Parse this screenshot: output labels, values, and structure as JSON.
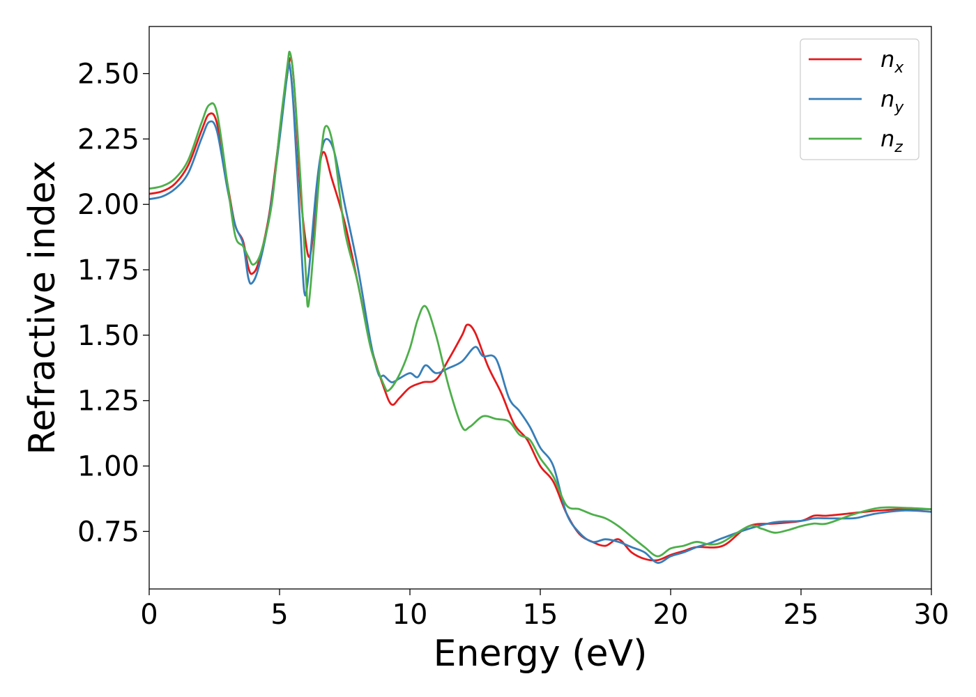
{
  "chart_data": {
    "type": "line",
    "xlabel": "Energy (eV)",
    "ylabel": "Refractive index",
    "xlim": [
      0,
      30
    ],
    "ylim": [
      0.53,
      2.68
    ],
    "xticks": [
      0,
      5,
      10,
      15,
      20,
      25,
      30
    ],
    "xtick_labels": [
      "0",
      "5",
      "10",
      "15",
      "20",
      "25",
      "30"
    ],
    "yticks": [
      0.75,
      1.0,
      1.25,
      1.5,
      1.75,
      2.0,
      2.25,
      2.5
    ],
    "ytick_labels": [
      "0.75",
      "1.00",
      "1.25",
      "1.50",
      "1.75",
      "2.00",
      "2.25",
      "2.50"
    ],
    "grid": false,
    "legend_position": "top-right",
    "series": [
      {
        "name": "n_x",
        "label_base": "n",
        "label_sub": "x",
        "color": "#e41a1c",
        "points": [
          [
            0,
            2.04
          ],
          [
            0.5,
            2.05
          ],
          [
            1,
            2.08
          ],
          [
            1.5,
            2.15
          ],
          [
            2,
            2.28
          ],
          [
            2.3,
            2.345
          ],
          [
            2.6,
            2.31
          ],
          [
            3,
            2.08
          ],
          [
            3.3,
            1.92
          ],
          [
            3.6,
            1.86
          ],
          [
            3.8,
            1.76
          ],
          [
            3.95,
            1.735
          ],
          [
            4.2,
            1.78
          ],
          [
            4.6,
            1.96
          ],
          [
            5,
            2.27
          ],
          [
            5.3,
            2.5
          ],
          [
            5.45,
            2.555
          ],
          [
            5.6,
            2.4
          ],
          [
            5.8,
            2.05
          ],
          [
            6,
            1.86
          ],
          [
            6.15,
            1.8
          ],
          [
            6.3,
            1.9
          ],
          [
            6.5,
            2.12
          ],
          [
            6.7,
            2.2
          ],
          [
            7,
            2.1
          ],
          [
            7.5,
            1.93
          ],
          [
            8,
            1.7
          ],
          [
            8.5,
            1.46
          ],
          [
            9,
            1.3
          ],
          [
            9.3,
            1.235
          ],
          [
            9.6,
            1.26
          ],
          [
            10,
            1.3
          ],
          [
            10.5,
            1.32
          ],
          [
            11,
            1.33
          ],
          [
            11.5,
            1.41
          ],
          [
            12,
            1.5
          ],
          [
            12.2,
            1.54
          ],
          [
            12.5,
            1.51
          ],
          [
            13,
            1.38
          ],
          [
            13.5,
            1.28
          ],
          [
            14,
            1.16
          ],
          [
            14.5,
            1.1
          ],
          [
            15,
            1.0
          ],
          [
            15.5,
            0.94
          ],
          [
            16,
            0.82
          ],
          [
            16.5,
            0.74
          ],
          [
            17,
            0.71
          ],
          [
            17.5,
            0.695
          ],
          [
            18,
            0.72
          ],
          [
            18.5,
            0.67
          ],
          [
            19,
            0.645
          ],
          [
            19.5,
            0.64
          ],
          [
            20,
            0.66
          ],
          [
            20.5,
            0.675
          ],
          [
            21,
            0.69
          ],
          [
            22,
            0.695
          ],
          [
            23,
            0.77
          ],
          [
            24,
            0.78
          ],
          [
            25,
            0.79
          ],
          [
            25.5,
            0.81
          ],
          [
            26,
            0.81
          ],
          [
            27,
            0.82
          ],
          [
            28,
            0.83
          ],
          [
            29,
            0.835
          ],
          [
            30,
            0.835
          ]
        ]
      },
      {
        "name": "n_y",
        "label_base": "n",
        "label_sub": "y",
        "color": "#377eb8",
        "points": [
          [
            0,
            2.02
          ],
          [
            0.5,
            2.03
          ],
          [
            1,
            2.06
          ],
          [
            1.5,
            2.12
          ],
          [
            2,
            2.25
          ],
          [
            2.3,
            2.315
          ],
          [
            2.6,
            2.28
          ],
          [
            3,
            2.06
          ],
          [
            3.3,
            1.92
          ],
          [
            3.6,
            1.85
          ],
          [
            3.8,
            1.72
          ],
          [
            3.95,
            1.7
          ],
          [
            4.2,
            1.76
          ],
          [
            4.6,
            1.95
          ],
          [
            5,
            2.25
          ],
          [
            5.3,
            2.5
          ],
          [
            5.4,
            2.525
          ],
          [
            5.55,
            2.35
          ],
          [
            5.8,
            1.9
          ],
          [
            5.95,
            1.665
          ],
          [
            6.1,
            1.72
          ],
          [
            6.4,
            2.05
          ],
          [
            6.6,
            2.2
          ],
          [
            6.8,
            2.25
          ],
          [
            7.1,
            2.2
          ],
          [
            7.5,
            2.0
          ],
          [
            8,
            1.76
          ],
          [
            8.5,
            1.47
          ],
          [
            8.8,
            1.35
          ],
          [
            9,
            1.345
          ],
          [
            9.3,
            1.32
          ],
          [
            9.6,
            1.335
          ],
          [
            10,
            1.355
          ],
          [
            10.3,
            1.34
          ],
          [
            10.6,
            1.385
          ],
          [
            11,
            1.355
          ],
          [
            11.5,
            1.375
          ],
          [
            12,
            1.4
          ],
          [
            12.5,
            1.455
          ],
          [
            12.8,
            1.42
          ],
          [
            13.3,
            1.41
          ],
          [
            13.8,
            1.26
          ],
          [
            14.2,
            1.21
          ],
          [
            14.6,
            1.15
          ],
          [
            15,
            1.07
          ],
          [
            15.5,
            1.0
          ],
          [
            16,
            0.82
          ],
          [
            16.5,
            0.745
          ],
          [
            17,
            0.71
          ],
          [
            17.5,
            0.72
          ],
          [
            18,
            0.71
          ],
          [
            18.5,
            0.69
          ],
          [
            19,
            0.67
          ],
          [
            19.5,
            0.63
          ],
          [
            20,
            0.655
          ],
          [
            20.5,
            0.67
          ],
          [
            21,
            0.69
          ],
          [
            21.5,
            0.705
          ],
          [
            22,
            0.725
          ],
          [
            23,
            0.76
          ],
          [
            24,
            0.785
          ],
          [
            25,
            0.79
          ],
          [
            25.5,
            0.8
          ],
          [
            26,
            0.8
          ],
          [
            27,
            0.8
          ],
          [
            27.5,
            0.81
          ],
          [
            28,
            0.82
          ],
          [
            29,
            0.83
          ],
          [
            30,
            0.825
          ]
        ]
      },
      {
        "name": "n_z",
        "label_base": "n",
        "label_sub": "z",
        "color": "#4daf4a",
        "points": [
          [
            0,
            2.06
          ],
          [
            0.5,
            2.07
          ],
          [
            1,
            2.1
          ],
          [
            1.5,
            2.17
          ],
          [
            2,
            2.31
          ],
          [
            2.3,
            2.38
          ],
          [
            2.6,
            2.35
          ],
          [
            3,
            2.08
          ],
          [
            3.3,
            1.88
          ],
          [
            3.6,
            1.84
          ],
          [
            3.8,
            1.8
          ],
          [
            4,
            1.77
          ],
          [
            4.3,
            1.82
          ],
          [
            4.7,
            2.0
          ],
          [
            5,
            2.28
          ],
          [
            5.3,
            2.53
          ],
          [
            5.4,
            2.58
          ],
          [
            5.55,
            2.47
          ],
          [
            5.8,
            2.1
          ],
          [
            6.0,
            1.75
          ],
          [
            6.1,
            1.61
          ],
          [
            6.3,
            1.82
          ],
          [
            6.6,
            2.2
          ],
          [
            6.8,
            2.3
          ],
          [
            7.1,
            2.2
          ],
          [
            7.5,
            1.9
          ],
          [
            8,
            1.7
          ],
          [
            8.5,
            1.45
          ],
          [
            9,
            1.31
          ],
          [
            9.2,
            1.29
          ],
          [
            9.6,
            1.35
          ],
          [
            10,
            1.45
          ],
          [
            10.3,
            1.56
          ],
          [
            10.6,
            1.61
          ],
          [
            11,
            1.5
          ],
          [
            11.5,
            1.3
          ],
          [
            12,
            1.15
          ],
          [
            12.3,
            1.15
          ],
          [
            12.8,
            1.19
          ],
          [
            13.3,
            1.18
          ],
          [
            13.8,
            1.17
          ],
          [
            14.2,
            1.12
          ],
          [
            14.6,
            1.1
          ],
          [
            15,
            1.03
          ],
          [
            15.5,
            0.96
          ],
          [
            16,
            0.85
          ],
          [
            16.5,
            0.835
          ],
          [
            17,
            0.815
          ],
          [
            17.5,
            0.8
          ],
          [
            18,
            0.77
          ],
          [
            18.5,
            0.73
          ],
          [
            19,
            0.69
          ],
          [
            19.5,
            0.655
          ],
          [
            20,
            0.685
          ],
          [
            20.5,
            0.695
          ],
          [
            21,
            0.71
          ],
          [
            21.5,
            0.7
          ],
          [
            22,
            0.71
          ],
          [
            23,
            0.77
          ],
          [
            23.5,
            0.76
          ],
          [
            24,
            0.745
          ],
          [
            24.5,
            0.755
          ],
          [
            25,
            0.77
          ],
          [
            25.5,
            0.78
          ],
          [
            26,
            0.78
          ],
          [
            27,
            0.815
          ],
          [
            28,
            0.84
          ],
          [
            29,
            0.84
          ],
          [
            30,
            0.835
          ]
        ]
      }
    ]
  }
}
